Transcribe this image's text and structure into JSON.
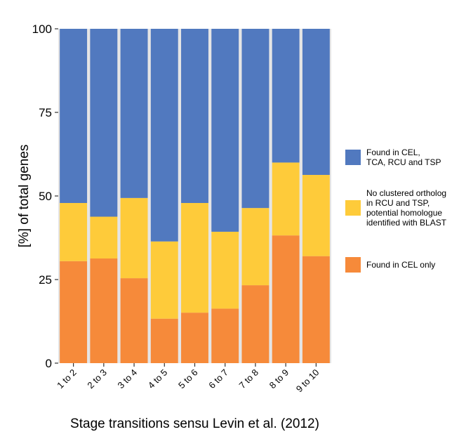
{
  "chart_data": {
    "type": "bar",
    "stacked": true,
    "categories": [
      "1 to 2",
      "2 to 3",
      "3 to 4",
      "4 to 5",
      "5 to 6",
      "6 to 7",
      "7 to 8",
      "8 to 9",
      "9 to 10"
    ],
    "series": [
      {
        "name": "Found in CEL only",
        "color": "#F68A3A",
        "values": [
          30.5,
          31.3,
          25.4,
          13.3,
          15.1,
          16.3,
          23.3,
          38.2,
          32.0
        ]
      },
      {
        "name": "No clustered ortholog in RCU and TSP, potential homologue identified with BLAST",
        "legend_lines": [
          "No clustered ortholog",
          "in RCU and TSP,",
          "potential homologue",
          "identified with BLAST"
        ],
        "color": "#FECB3A",
        "values": [
          17.4,
          12.5,
          24.0,
          23.1,
          32.8,
          23.0,
          23.1,
          21.8,
          24.3
        ]
      },
      {
        "name": "Found in CEL, TCA, RCU and TSP",
        "legend_lines": [
          "Found in CEL,",
          "TCA, RCU and TSP"
        ],
        "color": "#5179BF",
        "values": [
          52.1,
          56.2,
          50.6,
          63.6,
          52.1,
          60.7,
          53.6,
          40.0,
          43.7
        ]
      }
    ],
    "legend_order": [
      2,
      1,
      0
    ],
    "xlabel": "Stage transitions sensu Levin et al. (2012)",
    "ylabel": "[%] of total genes",
    "ylim": [
      0,
      100
    ],
    "yticks": [
      0,
      25,
      50,
      75,
      100
    ],
    "grid": false,
    "legend_position": "right",
    "panel_color": "#E5E5E5"
  }
}
